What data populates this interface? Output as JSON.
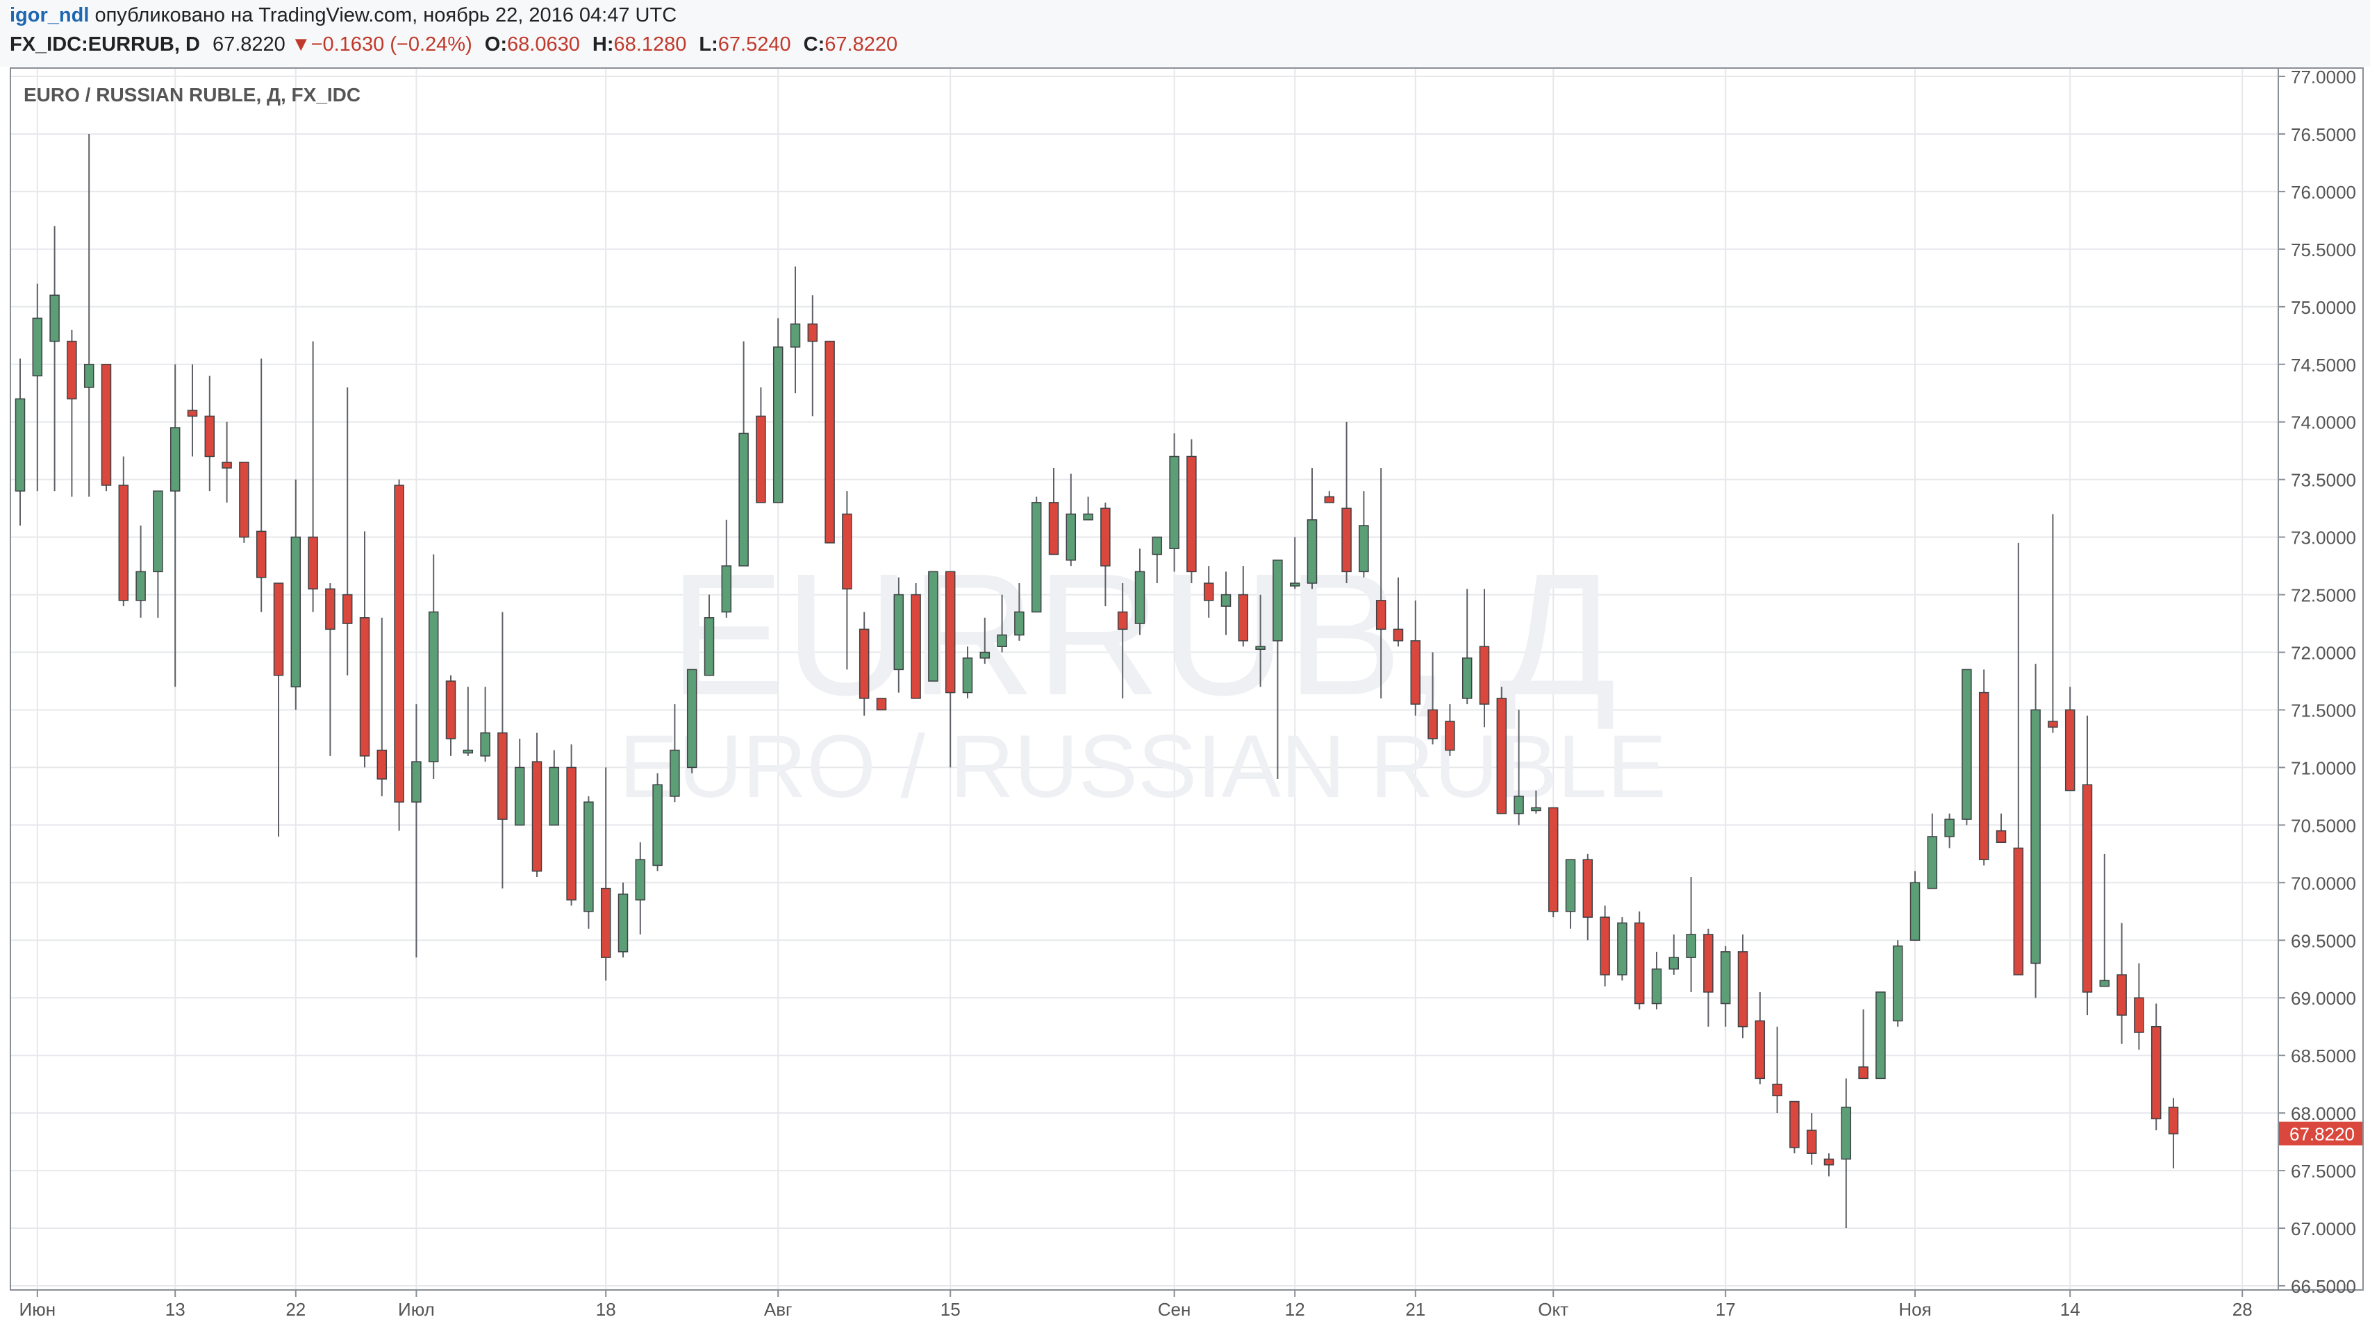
{
  "header": {
    "author": "igor_ndl",
    "published_text": "опубликовано на TradingView.com, ноябрь 22, 2016 04:47 UTC",
    "symbol": "FX_IDC:EURRUB, D",
    "last": "67.8220",
    "change_arrow": "▼",
    "change": "−0.1630 (−0.24%)",
    "open_label": "O:",
    "open": "68.0630",
    "high_label": "H:",
    "high": "68.1280",
    "low_label": "L:",
    "low": "67.5240",
    "close_label": "C:",
    "close": "67.8220"
  },
  "colors": {
    "up": "#5c9e76",
    "down": "#d9473d",
    "accent_red": "#c0392b",
    "user_link": "#1e67b0"
  },
  "chart_data": {
    "type": "candlestick",
    "title": "EURO / RUSSIAN RUBLE, Д, FX_IDC",
    "watermark_symbol": "EURRUB, Д",
    "watermark_name": "EURO / RUSSIAN RUBLE",
    "ylim": [
      66.5,
      77.0
    ],
    "y_ticks": [
      "77.0000",
      "76.5000",
      "76.0000",
      "75.5000",
      "75.0000",
      "74.5000",
      "74.0000",
      "73.5000",
      "73.0000",
      "72.5000",
      "72.0000",
      "71.5000",
      "71.0000",
      "70.5000",
      "70.0000",
      "69.5000",
      "69.0000",
      "68.5000",
      "68.0000",
      "67.5000",
      "67.0000",
      "66.5000"
    ],
    "last_price_label": "67.8220",
    "last_price": 67.822,
    "grid": true,
    "x_ticks": [
      {
        "label": "Июн",
        "bar": 1
      },
      {
        "label": "13",
        "bar": 9
      },
      {
        "label": "22",
        "bar": 16
      },
      {
        "label": "Июл",
        "bar": 23
      },
      {
        "label": "18",
        "bar": 34
      },
      {
        "label": "Авг",
        "bar": 44
      },
      {
        "label": "15",
        "bar": 54
      },
      {
        "label": "Сен",
        "bar": 67
      },
      {
        "label": "12",
        "bar": 74
      },
      {
        "label": "21",
        "bar": 81
      },
      {
        "label": "Окт",
        "bar": 89
      },
      {
        "label": "17",
        "bar": 99
      },
      {
        "label": "Ноя",
        "bar": 110
      },
      {
        "label": "14",
        "bar": 119
      },
      {
        "label": "28",
        "bar": 129
      }
    ],
    "x_grid_bars": [
      1,
      9,
      16,
      23,
      34,
      44,
      54,
      67,
      74,
      81,
      89,
      99,
      110,
      119,
      129
    ],
    "candles": [
      [
        73.4,
        74.2,
        73.1,
        74.55
      ],
      [
        74.4,
        74.9,
        73.4,
        75.2
      ],
      [
        74.7,
        75.1,
        73.4,
        75.7
      ],
      [
        74.7,
        74.2,
        73.35,
        74.8
      ],
      [
        74.3,
        74.5,
        73.35,
        76.5
      ],
      [
        74.5,
        73.45,
        73.4,
        74.5
      ],
      [
        73.45,
        72.45,
        72.4,
        73.7
      ],
      [
        72.45,
        72.7,
        72.3,
        73.1
      ],
      [
        72.7,
        73.4,
        72.3,
        73.4
      ],
      [
        73.4,
        73.95,
        71.7,
        74.5
      ],
      [
        74.1,
        74.05,
        73.7,
        74.5
      ],
      [
        74.05,
        73.7,
        73.4,
        74.4
      ],
      [
        73.65,
        73.6,
        73.3,
        74.0
      ],
      [
        73.65,
        73.0,
        72.95,
        73.6
      ],
      [
        73.05,
        72.65,
        72.35,
        74.55
      ],
      [
        72.6,
        71.8,
        70.4,
        72.6
      ],
      [
        71.7,
        73.0,
        71.5,
        73.5
      ],
      [
        73.0,
        72.55,
        72.35,
        74.7
      ],
      [
        72.55,
        72.2,
        71.1,
        72.6
      ],
      [
        72.5,
        72.25,
        71.8,
        74.3
      ],
      [
        72.3,
        71.1,
        71.0,
        73.05
      ],
      [
        71.15,
        70.9,
        70.75,
        72.3
      ],
      [
        73.45,
        70.7,
        70.45,
        73.5
      ],
      [
        70.7,
        71.05,
        69.35,
        71.55
      ],
      [
        71.05,
        72.35,
        70.9,
        72.85
      ],
      [
        71.75,
        71.25,
        71.1,
        71.8
      ],
      [
        71.15,
        71.15,
        71.1,
        71.7
      ],
      [
        71.1,
        71.3,
        71.05,
        71.7
      ],
      [
        71.3,
        70.55,
        69.95,
        72.35
      ],
      [
        70.5,
        71.0,
        70.5,
        71.25
      ],
      [
        71.05,
        70.1,
        70.05,
        71.3
      ],
      [
        70.5,
        71.0,
        70.5,
        71.15
      ],
      [
        71.0,
        69.85,
        69.8,
        71.2
      ],
      [
        69.75,
        70.7,
        69.6,
        70.75
      ],
      [
        69.95,
        69.35,
        69.15,
        71.0
      ],
      [
        69.4,
        69.9,
        69.35,
        70.0
      ],
      [
        69.85,
        70.2,
        69.55,
        70.35
      ],
      [
        70.15,
        70.85,
        70.1,
        70.95
      ],
      [
        70.75,
        71.15,
        70.7,
        71.55
      ],
      [
        71.0,
        71.85,
        70.95,
        71.85
      ],
      [
        71.8,
        72.3,
        71.8,
        72.5
      ],
      [
        72.35,
        72.75,
        72.3,
        73.15
      ],
      [
        72.75,
        73.9,
        72.75,
        74.7
      ],
      [
        74.05,
        73.3,
        73.3,
        74.3
      ],
      [
        73.3,
        74.65,
        73.3,
        74.9
      ],
      [
        74.65,
        74.85,
        74.25,
        75.35
      ],
      [
        74.85,
        74.7,
        74.05,
        75.1
      ],
      [
        74.7,
        72.95,
        72.95,
        74.7
      ],
      [
        73.2,
        72.55,
        71.85,
        73.4
      ],
      [
        72.2,
        71.6,
        71.45,
        72.35
      ],
      [
        71.6,
        71.5,
        71.5,
        71.6
      ],
      [
        71.85,
        72.5,
        71.65,
        72.65
      ],
      [
        72.5,
        71.6,
        71.6,
        72.6
      ],
      [
        71.75,
        72.7,
        71.75,
        72.7
      ],
      [
        72.7,
        71.65,
        71.0,
        72.7
      ],
      [
        71.65,
        71.95,
        71.6,
        72.05
      ],
      [
        71.95,
        72.0,
        71.9,
        72.3
      ],
      [
        72.05,
        72.15,
        72.0,
        72.5
      ],
      [
        72.15,
        72.35,
        72.1,
        72.6
      ],
      [
        72.35,
        73.3,
        72.35,
        73.35
      ],
      [
        73.3,
        72.85,
        72.85,
        73.6
      ],
      [
        72.8,
        73.2,
        72.75,
        73.55
      ],
      [
        73.15,
        73.2,
        73.15,
        73.35
      ],
      [
        73.25,
        72.75,
        72.4,
        73.3
      ],
      [
        72.35,
        72.2,
        71.6,
        72.6
      ],
      [
        72.25,
        72.7,
        72.15,
        72.9
      ],
      [
        72.85,
        73.0,
        72.6,
        73.0
      ],
      [
        72.9,
        73.7,
        72.7,
        73.9
      ],
      [
        73.7,
        72.7,
        72.6,
        73.85
      ],
      [
        72.6,
        72.45,
        72.3,
        72.75
      ],
      [
        72.4,
        72.5,
        72.15,
        72.7
      ],
      [
        72.5,
        72.1,
        72.05,
        72.75
      ],
      [
        72.05,
        72.05,
        71.7,
        72.5
      ],
      [
        72.1,
        72.8,
        70.9,
        72.8
      ],
      [
        72.6,
        72.6,
        72.55,
        73.0
      ],
      [
        72.6,
        73.15,
        72.55,
        73.6
      ],
      [
        73.35,
        73.3,
        73.3,
        73.4
      ],
      [
        73.25,
        72.7,
        72.6,
        74.0
      ],
      [
        72.7,
        73.1,
        72.65,
        73.4
      ],
      [
        72.45,
        72.2,
        71.6,
        73.6
      ],
      [
        72.2,
        72.1,
        72.05,
        72.65
      ],
      [
        72.1,
        71.55,
        71.45,
        72.45
      ],
      [
        71.5,
        71.25,
        71.2,
        72.0
      ],
      [
        71.4,
        71.15,
        71.1,
        71.55
      ],
      [
        71.6,
        71.95,
        71.55,
        72.55
      ],
      [
        72.05,
        71.55,
        71.35,
        72.55
      ],
      [
        71.6,
        70.6,
        70.6,
        71.7
      ],
      [
        70.6,
        70.75,
        70.5,
        71.5
      ],
      [
        70.65,
        70.65,
        70.6,
        70.8
      ],
      [
        70.65,
        69.75,
        69.7,
        70.65
      ],
      [
        69.75,
        70.2,
        69.6,
        70.2
      ],
      [
        70.2,
        69.7,
        69.5,
        70.25
      ],
      [
        69.7,
        69.2,
        69.1,
        69.8
      ],
      [
        69.2,
        69.65,
        69.15,
        69.7
      ],
      [
        69.65,
        68.95,
        68.9,
        69.75
      ],
      [
        68.95,
        69.25,
        68.9,
        69.4
      ],
      [
        69.25,
        69.35,
        69.2,
        69.55
      ],
      [
        69.35,
        69.55,
        69.05,
        70.05
      ],
      [
        69.55,
        69.05,
        68.75,
        69.6
      ],
      [
        68.95,
        69.4,
        68.75,
        69.45
      ],
      [
        69.4,
        68.75,
        68.65,
        69.55
      ],
      [
        68.8,
        68.3,
        68.25,
        69.05
      ],
      [
        68.25,
        68.15,
        68.0,
        68.75
      ],
      [
        68.1,
        67.7,
        67.65,
        68.1
      ],
      [
        67.85,
        67.65,
        67.55,
        68.0
      ],
      [
        67.6,
        67.55,
        67.45,
        67.65
      ],
      [
        67.6,
        68.05,
        67.0,
        68.3
      ],
      [
        68.4,
        68.3,
        68.3,
        68.9
      ],
      [
        68.3,
        69.05,
        68.3,
        69.05
      ],
      [
        68.8,
        69.45,
        68.75,
        69.5
      ],
      [
        69.5,
        70.0,
        69.5,
        70.1
      ],
      [
        69.95,
        70.4,
        69.95,
        70.6
      ],
      [
        70.4,
        70.55,
        70.3,
        70.6
      ],
      [
        70.55,
        71.85,
        70.5,
        71.85
      ],
      [
        71.65,
        70.2,
        70.15,
        71.85
      ],
      [
        70.45,
        70.35,
        70.35,
        70.6
      ],
      [
        70.3,
        69.2,
        69.2,
        72.95
      ],
      [
        69.3,
        71.5,
        69.0,
        71.9
      ],
      [
        71.4,
        71.35,
        71.3,
        73.2
      ],
      [
        71.5,
        70.8,
        70.8,
        71.7
      ],
      [
        70.85,
        69.05,
        68.85,
        71.45
      ],
      [
        69.1,
        69.15,
        69.1,
        70.25
      ],
      [
        69.2,
        68.85,
        68.6,
        69.65
      ],
      [
        69.0,
        68.7,
        68.55,
        69.3
      ],
      [
        68.75,
        67.95,
        67.85,
        68.95
      ],
      [
        68.05,
        67.82,
        67.52,
        68.13
      ]
    ]
  }
}
